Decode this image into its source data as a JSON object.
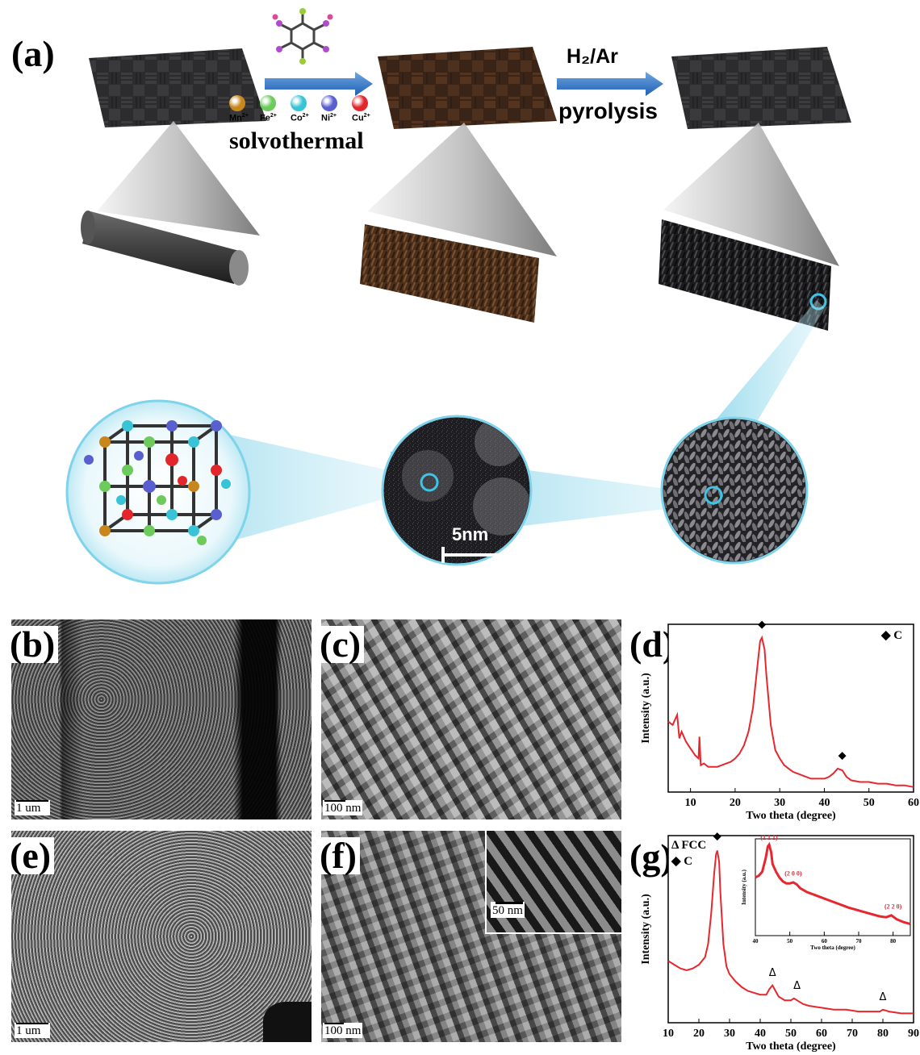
{
  "panel_a": {
    "label": "(a)",
    "ions": [
      {
        "name": "Mn",
        "charge": "2+",
        "color": "#c8861c"
      },
      {
        "name": "Fe",
        "charge": "2+",
        "color": "#6ccb5a"
      },
      {
        "name": "Co",
        "charge": "2+",
        "color": "#38c4d6"
      },
      {
        "name": "Ni",
        "charge": "2+",
        "color": "#5a5fd0"
      },
      {
        "name": "Cu",
        "charge": "2+",
        "color": "#e2262b"
      }
    ],
    "step1_label": "solvothermal",
    "step2_label_line1": "H₂/Ar",
    "step2_label_line2": "pyrolysis",
    "tem_scale": "5nm"
  },
  "panel_b": {
    "label": "(b)",
    "scale": "1 um"
  },
  "panel_c": {
    "label": "(c)",
    "scale": "100 nm"
  },
  "panel_d": {
    "label": "(d)",
    "legend": "◆ C"
  },
  "panel_e": {
    "label": "(e)",
    "scale": "1 um"
  },
  "panel_f": {
    "label": "(f)",
    "scale": "100 nm",
    "inset_scale": "50 nm"
  },
  "panel_g": {
    "label": "(g)",
    "legend_fcc": "Δ FCC",
    "legend_c": "◆ C"
  },
  "chart_data": [
    {
      "id": "d",
      "type": "line",
      "xlabel": "Two theta (degree)",
      "ylabel": "Intensity (a.u.)",
      "xlim": [
        5,
        60
      ],
      "xticks": [
        "10",
        "20",
        "30",
        "40",
        "50",
        "60"
      ],
      "series": [
        {
          "name": "C",
          "color": "#e8262e",
          "x": [
            5,
            6,
            7,
            7.5,
            8,
            9,
            10,
            11,
            11.8,
            12,
            12.3,
            13,
            14,
            15,
            16,
            17,
            18,
            19,
            20,
            21,
            22,
            23,
            24,
            25,
            25.6,
            26,
            26.6,
            27,
            28,
            29,
            30,
            31,
            32,
            33,
            34,
            35,
            36,
            37,
            38,
            39,
            40,
            41,
            42,
            43,
            44,
            45,
            46,
            48,
            50,
            52,
            54,
            56,
            58,
            60
          ],
          "y": [
            0.42,
            0.4,
            0.46,
            0.32,
            0.36,
            0.3,
            0.26,
            0.22,
            0.2,
            0.33,
            0.16,
            0.17,
            0.15,
            0.15,
            0.15,
            0.16,
            0.17,
            0.18,
            0.2,
            0.23,
            0.28,
            0.36,
            0.5,
            0.75,
            0.9,
            0.92,
            0.85,
            0.7,
            0.4,
            0.25,
            0.2,
            0.16,
            0.14,
            0.12,
            0.11,
            0.1,
            0.09,
            0.08,
            0.08,
            0.08,
            0.08,
            0.09,
            0.11,
            0.14,
            0.13,
            0.09,
            0.07,
            0.06,
            0.06,
            0.05,
            0.05,
            0.04,
            0.04,
            0.03
          ]
        }
      ],
      "markers": [
        {
          "symbol": "◆",
          "x": 26,
          "y": 0.98
        },
        {
          "symbol": "◆",
          "x": 44,
          "y": 0.2
        }
      ],
      "legend_position": "top-right"
    },
    {
      "id": "g",
      "type": "line",
      "xlabel": "Two theta (degree)",
      "ylabel": "Intensity (a.u.)",
      "xlim": [
        10,
        90
      ],
      "xticks": [
        "10",
        "20",
        "30",
        "40",
        "50",
        "60",
        "70",
        "80",
        "90"
      ],
      "series": [
        {
          "name": "C",
          "color": "#e8262e",
          "x": [
            10,
            12,
            14,
            16,
            18,
            20,
            22,
            23,
            24,
            25,
            25.6,
            26,
            26.6,
            27,
            28,
            29,
            30,
            32,
            34,
            36,
            38,
            40,
            42,
            43,
            44,
            45,
            46,
            48,
            50,
            51,
            52,
            54,
            56,
            60,
            64,
            68,
            72,
            76,
            79,
            80,
            82,
            86,
            90
          ],
          "y": [
            0.33,
            0.31,
            0.29,
            0.28,
            0.29,
            0.31,
            0.35,
            0.42,
            0.58,
            0.8,
            0.9,
            0.92,
            0.86,
            0.7,
            0.42,
            0.3,
            0.26,
            0.22,
            0.19,
            0.17,
            0.16,
            0.15,
            0.15,
            0.18,
            0.2,
            0.17,
            0.14,
            0.12,
            0.12,
            0.13,
            0.12,
            0.1,
            0.09,
            0.08,
            0.07,
            0.07,
            0.06,
            0.06,
            0.06,
            0.07,
            0.06,
            0.05,
            0.05
          ]
        }
      ],
      "markers": [
        {
          "symbol": "◆",
          "x": 26,
          "y": 0.98
        },
        {
          "symbol": "Δ",
          "x": 44,
          "y": 0.25
        },
        {
          "symbol": "Δ",
          "x": 52,
          "y": 0.18
        },
        {
          "symbol": "Δ",
          "x": 80,
          "y": 0.12
        }
      ],
      "legend_position": "top-left",
      "inset": {
        "xlabel": "Two theta (degree)",
        "ylabel": "Intensity (a.u.)",
        "xlim": [
          40,
          85
        ],
        "xticks": [
          "40",
          "50",
          "60",
          "70",
          "80"
        ],
        "series": [
          {
            "name": "",
            "color": "#e8262e",
            "x": [
              40,
              41,
              42,
              43,
              43.6,
              44,
              44.6,
              45,
              46,
              47,
              48,
              49,
              50,
              51,
              52,
              53,
              55,
              58,
              61,
              64,
              67,
              70,
              73,
              76,
              78,
              79.5,
              81,
              83,
              85
            ],
            "y": [
              0.6,
              0.62,
              0.66,
              0.8,
              0.92,
              0.94,
              0.86,
              0.74,
              0.66,
              0.6,
              0.56,
              0.54,
              0.54,
              0.55,
              0.53,
              0.49,
              0.45,
              0.41,
              0.37,
              0.33,
              0.29,
              0.26,
              0.23,
              0.2,
              0.19,
              0.21,
              0.17,
              0.14,
              0.12
            ]
          }
        ],
        "peak_labels": [
          {
            "text": "(1 1 1)",
            "x": 44,
            "y": 0.99
          },
          {
            "text": "(2 0 0)",
            "x": 51,
            "y": 0.62
          },
          {
            "text": "(2 2 0)",
            "x": 80,
            "y": 0.28
          }
        ]
      }
    }
  ]
}
